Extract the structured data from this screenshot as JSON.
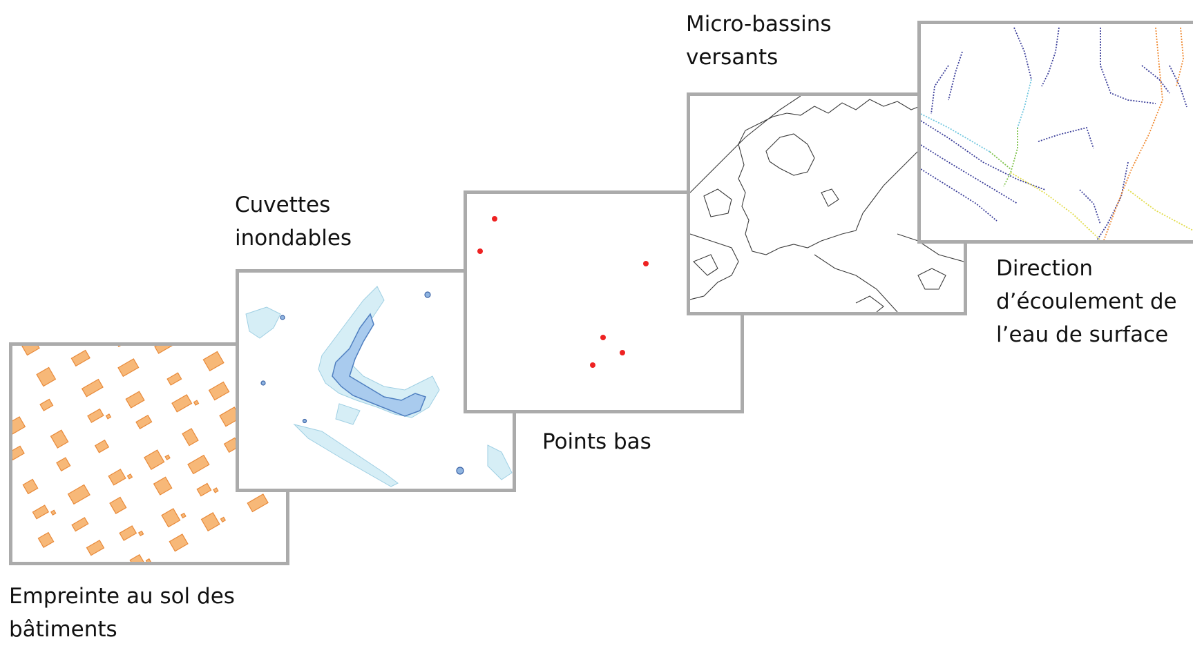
{
  "layers": [
    {
      "id": "buildings",
      "label_lines": [
        "Empreinte au sol des",
        "bâtiments"
      ],
      "color": "#f6a962",
      "stroke": "#e88a3a"
    },
    {
      "id": "depressions",
      "label_lines": [
        "Cuvettes",
        "inondables"
      ],
      "color": "#a8cbec",
      "stroke": "#4f7fc0",
      "light": "#cde8f2"
    },
    {
      "id": "low-points",
      "label_lines": [
        "Points bas"
      ],
      "color": "#ee2222"
    },
    {
      "id": "micro-basins",
      "label_lines": [
        "Micro-bassins",
        "versants"
      ],
      "color": "#444444"
    },
    {
      "id": "flow-direction",
      "label_lines": [
        "Direction",
        "d’écoulement de",
        "l’eau de surface"
      ],
      "colors": [
        "#3c3f9a",
        "#6fc6df",
        "#7ec24a",
        "#e2dc4a",
        "#f08a32"
      ]
    }
  ],
  "frame_color": "#ababab"
}
